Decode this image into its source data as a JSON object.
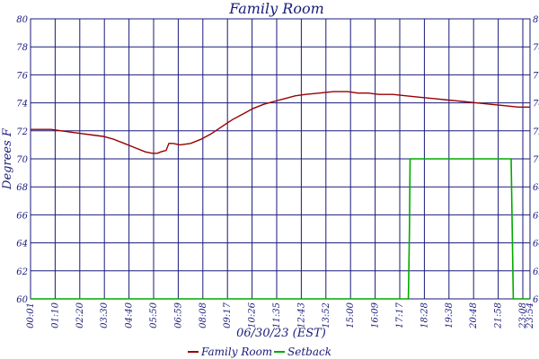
{
  "chart_data": {
    "type": "line",
    "title": "Family Room",
    "xlabel": "06/30/23 (EST)",
    "ylabel": "Degrees F",
    "ylim": [
      60,
      80
    ],
    "yticks": [
      60,
      62,
      64,
      66,
      68,
      70,
      72,
      74,
      76,
      78,
      80
    ],
    "xticks": [
      "00:01",
      "01:10",
      "02:20",
      "03:30",
      "04:40",
      "05:50",
      "06:59",
      "08:08",
      "09:17",
      "10:26",
      "11:35",
      "12:43",
      "13:52",
      "15:00",
      "16:09",
      "17:17",
      "18:28",
      "19:38",
      "20:48",
      "21:58",
      "23:08",
      "23:54"
    ],
    "xlim_minutes": [
      1,
      1434
    ],
    "grid": true,
    "legend_position": "bottom",
    "colors": {
      "family_room": "#990000",
      "setback": "#00aa00",
      "grid": "#1a1a7a",
      "text": "#1a1a7a"
    },
    "series": [
      {
        "name": "Family Room",
        "points": [
          [
            1,
            72.1
          ],
          [
            60,
            72.1
          ],
          [
            90,
            72.0
          ],
          [
            120,
            71.9
          ],
          [
            150,
            71.8
          ],
          [
            180,
            71.7
          ],
          [
            210,
            71.6
          ],
          [
            240,
            71.4
          ],
          [
            270,
            71.1
          ],
          [
            300,
            70.8
          ],
          [
            330,
            70.5
          ],
          [
            350,
            70.4
          ],
          [
            365,
            70.4
          ],
          [
            375,
            70.5
          ],
          [
            390,
            70.6
          ],
          [
            398,
            71.1
          ],
          [
            410,
            71.1
          ],
          [
            430,
            71.0
          ],
          [
            460,
            71.1
          ],
          [
            490,
            71.4
          ],
          [
            520,
            71.8
          ],
          [
            550,
            72.3
          ],
          [
            580,
            72.8
          ],
          [
            610,
            73.2
          ],
          [
            640,
            73.6
          ],
          [
            670,
            73.9
          ],
          [
            700,
            74.1
          ],
          [
            730,
            74.3
          ],
          [
            760,
            74.5
          ],
          [
            790,
            74.6
          ],
          [
            830,
            74.7
          ],
          [
            870,
            74.8
          ],
          [
            910,
            74.8
          ],
          [
            940,
            74.7
          ],
          [
            970,
            74.7
          ],
          [
            1000,
            74.6
          ],
          [
            1040,
            74.6
          ],
          [
            1080,
            74.5
          ],
          [
            1120,
            74.4
          ],
          [
            1160,
            74.3
          ],
          [
            1200,
            74.2
          ],
          [
            1240,
            74.1
          ],
          [
            1280,
            74.0
          ],
          [
            1320,
            73.9
          ],
          [
            1360,
            73.8
          ],
          [
            1400,
            73.7
          ],
          [
            1434,
            73.7
          ]
        ]
      },
      {
        "name": "Setback",
        "points": [
          [
            1,
            60
          ],
          [
            1085,
            60
          ],
          [
            1088,
            65
          ],
          [
            1090,
            70
          ],
          [
            1380,
            70
          ],
          [
            1383,
            65
          ],
          [
            1386,
            60
          ],
          [
            1434,
            60
          ]
        ]
      }
    ]
  }
}
